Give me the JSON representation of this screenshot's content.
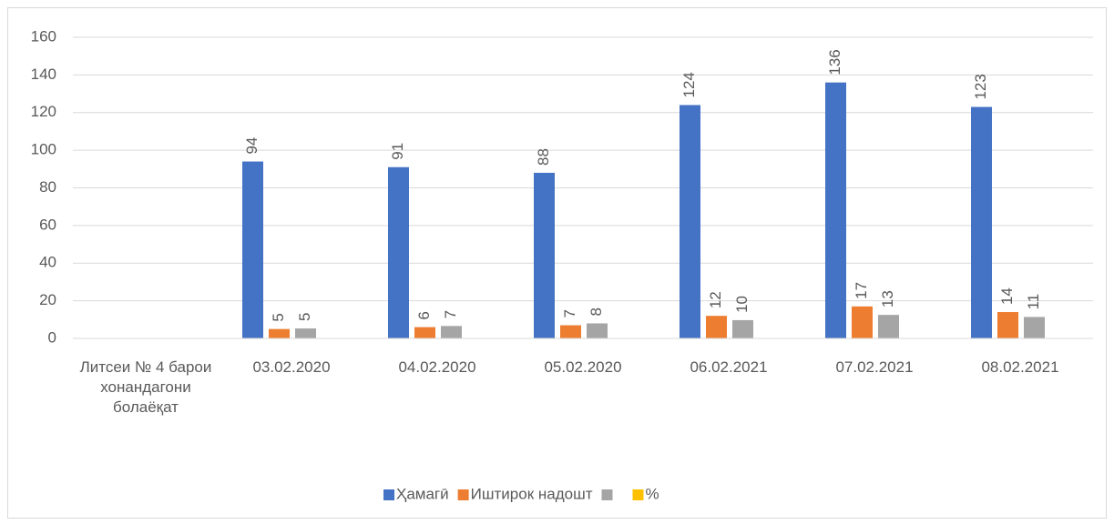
{
  "chart_data": {
    "type": "bar",
    "categories": [
      "Литсеи № 4 барои хонандагони болаёқат",
      "03.02.2020",
      "04.02.2020",
      "05.02.2020",
      "06.02.2021",
      "07.02.2021",
      "08.02.2021"
    ],
    "series": [
      {
        "name": "Ҳамагӣ",
        "color": "#4472c4",
        "values": [
          null,
          94,
          91,
          88,
          124,
          136,
          123
        ]
      },
      {
        "name": "Иштирок надошт",
        "color": "#ed7d31",
        "values": [
          null,
          5,
          6,
          7,
          12,
          17,
          14
        ]
      },
      {
        "name": null,
        "color": "#a5a5a5",
        "values": [
          null,
          5.3,
          6.6,
          8,
          9.7,
          12.5,
          11.4
        ],
        "value_labels": [
          null,
          "5",
          "7",
          "8",
          "10",
          "13",
          "11"
        ]
      },
      {
        "name": "%",
        "color": "#ffc000",
        "values": [
          null,
          null,
          null,
          null,
          null,
          null,
          null
        ]
      }
    ],
    "ylim": [
      0,
      160
    ],
    "yticks": [
      0,
      20,
      40,
      60,
      80,
      100,
      120,
      140,
      160
    ],
    "grid": true,
    "legend": "bottom"
  }
}
